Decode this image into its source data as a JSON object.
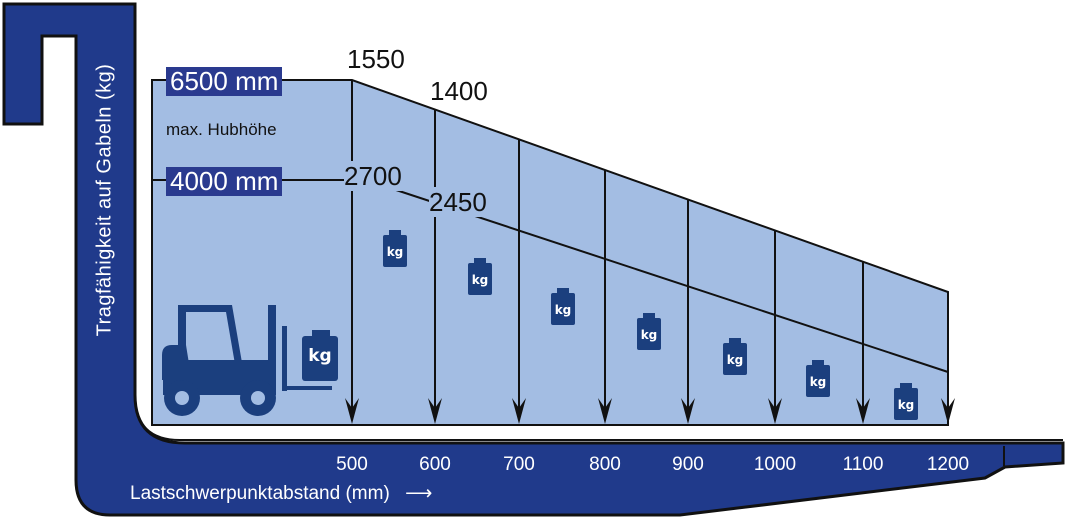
{
  "y_axis_label": "Tragfähigkeit auf Gabeln (kg)",
  "x_axis_label": "Lastschwerpunktabstand (mm)",
  "heights": [
    {
      "label": "6500 mm",
      "capacity_first": "1550",
      "capacity_second": "1400"
    },
    {
      "label": "4000 mm",
      "capacity_first": "2700",
      "capacity_second": "2450"
    }
  ],
  "height_note": "max. Hubhöhe",
  "x_ticks": [
    "500",
    "600",
    "700",
    "800",
    "900",
    "1000",
    "1100",
    "1200"
  ],
  "weight_icon_label": "kg",
  "colors": {
    "fork": "#203a8b",
    "area": "#a3bde3",
    "weight": "#1b3f7e",
    "label_bg": "#2a3a8f"
  }
}
